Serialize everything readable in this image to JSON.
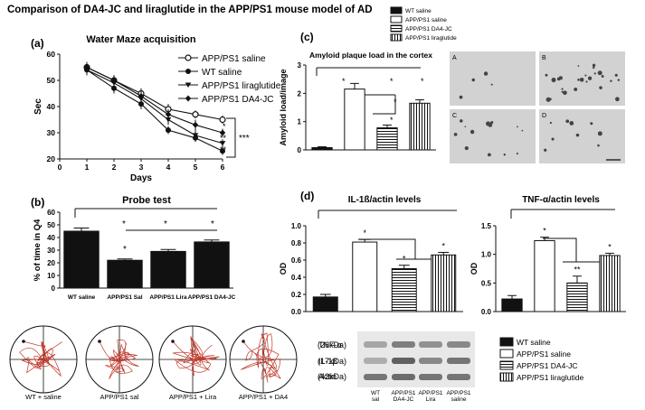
{
  "figure_title": "Comparison of DA4-JC and liraglutide in the APP/PS1 mouse model of AD",
  "panel_a": {
    "label": "(a)",
    "stars_cluster": [
      "*",
      "**",
      "**"
    ],
    "stars_bracket": "***"
  },
  "panel_b": {
    "label": "(b)",
    "stars": [
      "*",
      "*",
      "*",
      "*"
    ],
    "maze_captions": [
      "WT + saline",
      "APP/PS1 sal",
      "APP/PS1 + Lira",
      "APP/PS1 + DA4"
    ]
  },
  "panel_c": {
    "label": "(c)",
    "micro_labels": [
      "A",
      "B",
      "C",
      "D"
    ],
    "stars": [
      "*",
      "*",
      "*",
      "*",
      "*"
    ]
  },
  "panel_d": {
    "label": "(d)",
    "blot_labels": [
      "TNF-α",
      "IL-1β",
      "Actin"
    ],
    "blot_kda": [
      "(26kDa)",
      "(17kDa)",
      "(42kDa)"
    ],
    "blot_lanes": [
      "WT sal",
      "APP/PS1 DA4-JC",
      "APP/PS1 Lira",
      "APP/PS1 saline"
    ]
  },
  "colors": {
    "line": "#111111",
    "maze_path": "#c0392b",
    "micro_bg": "#d2d2d2"
  },
  "chart_data": [
    {
      "id": "water-maze",
      "type": "line",
      "title": "Water Maze acquisition",
      "xlabel": "Days",
      "ylabel": "Sec",
      "xlim": [
        0,
        6
      ],
      "ylim": [
        20,
        60
      ],
      "xticks": [
        0,
        1,
        2,
        3,
        4,
        5,
        6
      ],
      "yticks": [
        20,
        30,
        40,
        50,
        60
      ],
      "x": [
        1,
        2,
        3,
        4,
        5,
        6
      ],
      "series": [
        {
          "name": "APP/PS1 saline",
          "marker": "open-circle",
          "values": [
            55,
            50,
            45,
            39,
            37,
            35
          ],
          "errors": [
            2,
            2,
            2,
            2,
            1.5,
            1.5
          ]
        },
        {
          "name": "WT saline",
          "marker": "filled-circle",
          "values": [
            54,
            47,
            41,
            31,
            28,
            23
          ],
          "errors": [
            2,
            2,
            2,
            1.5,
            1.5,
            1.5
          ]
        },
        {
          "name": "APP/PS1 liraglutide",
          "marker": "triangle-down",
          "values": [
            54,
            49,
            43,
            35,
            29,
            26
          ],
          "errors": [
            2,
            2,
            2,
            2,
            2,
            1.5
          ]
        },
        {
          "name": "APP/PS1 DA4-JC",
          "marker": "diamond",
          "values": [
            55,
            50,
            44,
            37,
            33,
            30
          ],
          "errors": [
            2,
            2,
            2,
            2,
            2,
            1.5
          ]
        }
      ],
      "legend": "top-right"
    },
    {
      "id": "probe-test",
      "type": "bar",
      "title": "Probe test",
      "ylabel": "% of time in Q4",
      "ylim": [
        0,
        60
      ],
      "yticks": [
        0,
        10,
        20,
        30,
        40,
        50,
        60
      ],
      "categories": [
        "WT saline",
        "APP/PS1 Sal",
        "APP/PS1 Lira",
        "APP/PS1 DA4-JC"
      ],
      "values": [
        45,
        22,
        29,
        36.5
      ],
      "errors": [
        2.5,
        1,
        1.5,
        1.5
      ]
    },
    {
      "id": "amyloid",
      "type": "bar",
      "title": "Amyloid plaque load in the cortex",
      "ylabel": "Amyloid load/image",
      "ylim": [
        0,
        3
      ],
      "yticks": [
        0,
        1,
        2,
        3
      ],
      "categories": [
        "WT saline",
        "APP/PS1 saline",
        "APP/PS1 DA4-JC",
        "APP/PS1 liraglutide"
      ],
      "values": [
        0.08,
        2.15,
        0.78,
        1.65
      ],
      "errors": [
        0.03,
        0.2,
        0.1,
        0.12
      ],
      "legend": [
        "WT saline",
        "APP/PS1 saline",
        "APP/PS1 DA4-JC",
        "APP/PS1 liraglutide"
      ]
    },
    {
      "id": "il1b",
      "type": "bar",
      "title": "IL-1ß/actin levels",
      "ylabel": "OD",
      "ylim": [
        0,
        1.0
      ],
      "yticks": [
        0.0,
        0.2,
        0.4,
        0.6,
        0.8,
        1.0
      ],
      "categories": [
        "WT saline",
        "APP/PS1 saline",
        "APP/PS1 DA4-JC",
        "APP/PS1 liraglutide"
      ],
      "values": [
        0.17,
        0.81,
        0.5,
        0.66
      ],
      "errors": [
        0.03,
        0.03,
        0.04,
        0.03
      ]
    },
    {
      "id": "tnfa",
      "type": "bar",
      "title": "TNF-α/actin levels",
      "ylabel": "OD",
      "ylim": [
        0,
        1.5
      ],
      "yticks": [
        0.0,
        0.5,
        1.0,
        1.5
      ],
      "categories": [
        "WT saline",
        "APP/PS1 saline",
        "APP/PS1 DA4-JC",
        "APP/PS1 liraglutide"
      ],
      "values": [
        0.22,
        1.24,
        0.5,
        0.98
      ],
      "errors": [
        0.06,
        0.06,
        0.12,
        0.04
      ],
      "legend": [
        "WT saline",
        "APP/PS1 saline",
        "APP/PS1 DA4-JC",
        "APP/PS1 liraglutide"
      ]
    }
  ]
}
